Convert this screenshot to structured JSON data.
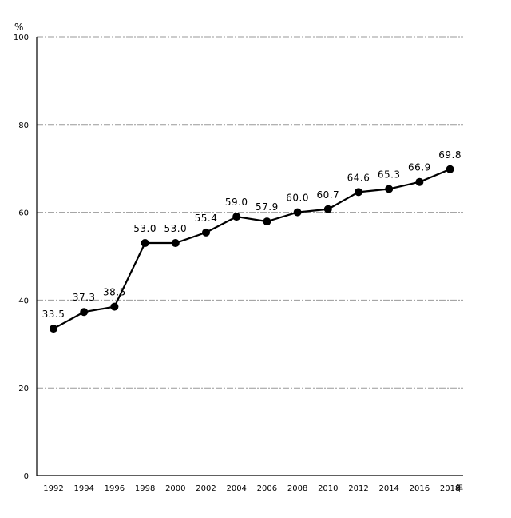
{
  "chart_data": {
    "type": "line",
    "title": "",
    "xlabel": "年",
    "ylabel": "%",
    "categories": [
      "1992",
      "1994",
      "1996",
      "1998",
      "2000",
      "2002",
      "2004",
      "2006",
      "2008",
      "2010",
      "2012",
      "2014",
      "2016",
      "2018"
    ],
    "series": [
      {
        "values": [
          33.5,
          37.3,
          38.5,
          53.0,
          53.0,
          55.4,
          59.0,
          57.9,
          60.0,
          60.7,
          64.6,
          65.3,
          66.9,
          69.8
        ]
      }
    ],
    "data_labels": [
      "33.5",
      "37.3",
      "38.5",
      "53.0",
      "53.0",
      "55.4",
      "59.0",
      "57.9",
      "60.0",
      "60.7",
      "64.6",
      "65.3",
      "66.9",
      "69.8"
    ],
    "ylim": [
      0,
      100
    ],
    "yticks": [
      0,
      20,
      40,
      60,
      80,
      100
    ],
    "grid": true,
    "legend": "none",
    "line_color": "#000000",
    "grid_color": "#999999"
  }
}
